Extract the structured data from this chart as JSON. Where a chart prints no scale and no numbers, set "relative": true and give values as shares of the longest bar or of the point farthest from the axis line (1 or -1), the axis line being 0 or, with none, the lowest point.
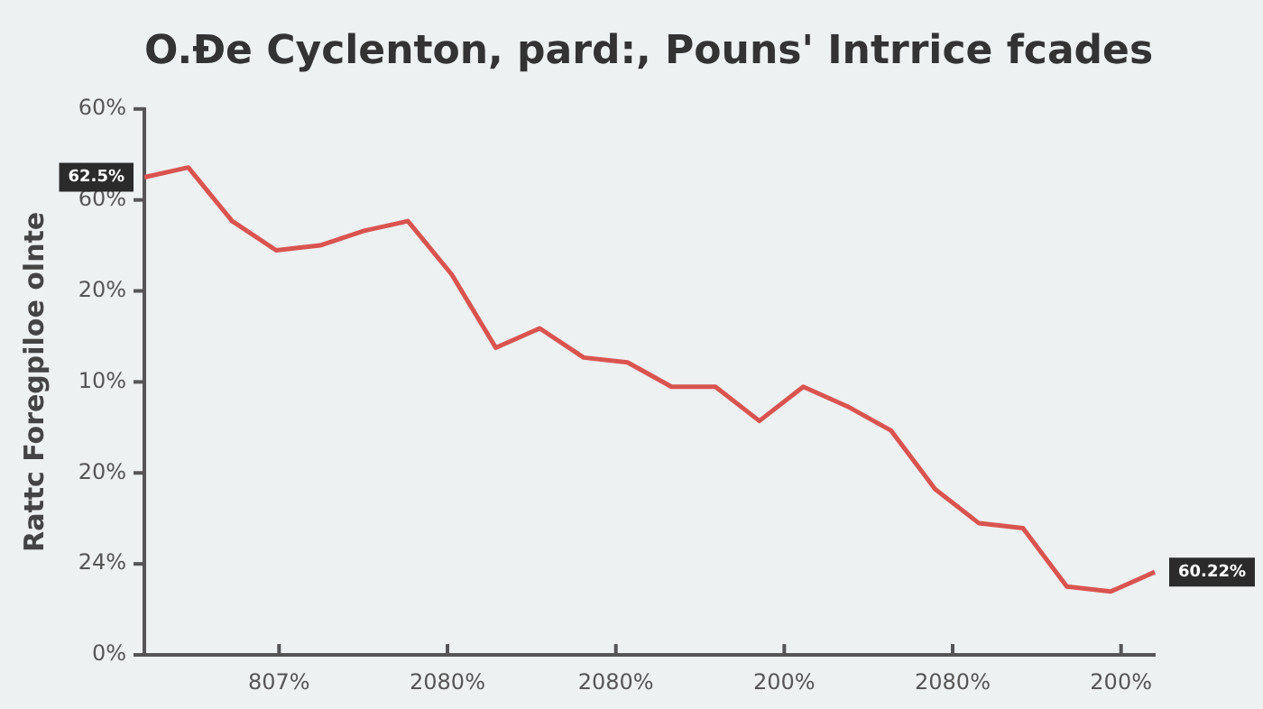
{
  "chart_data": {
    "type": "line",
    "title": "O.Đe Cyclenton, pard:, Pouns' Intrrice fcades",
    "ylabel": "Rattc Foregpiloe olnte",
    "relative": true,
    "categories": [
      null,
      null,
      null,
      null,
      null,
      null,
      null,
      null,
      null,
      null,
      null,
      null,
      null,
      null,
      null,
      null,
      null,
      null,
      null,
      null,
      null,
      null,
      null,
      null
    ],
    "series": [
      {
        "color": "#d9534f",
        "values": [
          0.98,
          1,
          0.89,
          0.83,
          0.84,
          0.87,
          0.89,
          0.78,
          0.63,
          0.67,
          0.61,
          0.6,
          0.55,
          0.55,
          0.48,
          0.55,
          0.51,
          0.46,
          0.34,
          0.27,
          0.26,
          0.14,
          0.13,
          0.17
        ]
      }
    ],
    "annotations": [
      "60%",
      "60%",
      "20%",
      "10%",
      "20%",
      "24%",
      "0%",
      "807%",
      "2080%",
      "2080%",
      "200%",
      "2080%",
      "200%",
      "62.5%",
      "60.22%"
    ],
    "grid": false,
    "legend": false,
    "marker": "none",
    "line_style": "solid"
  }
}
